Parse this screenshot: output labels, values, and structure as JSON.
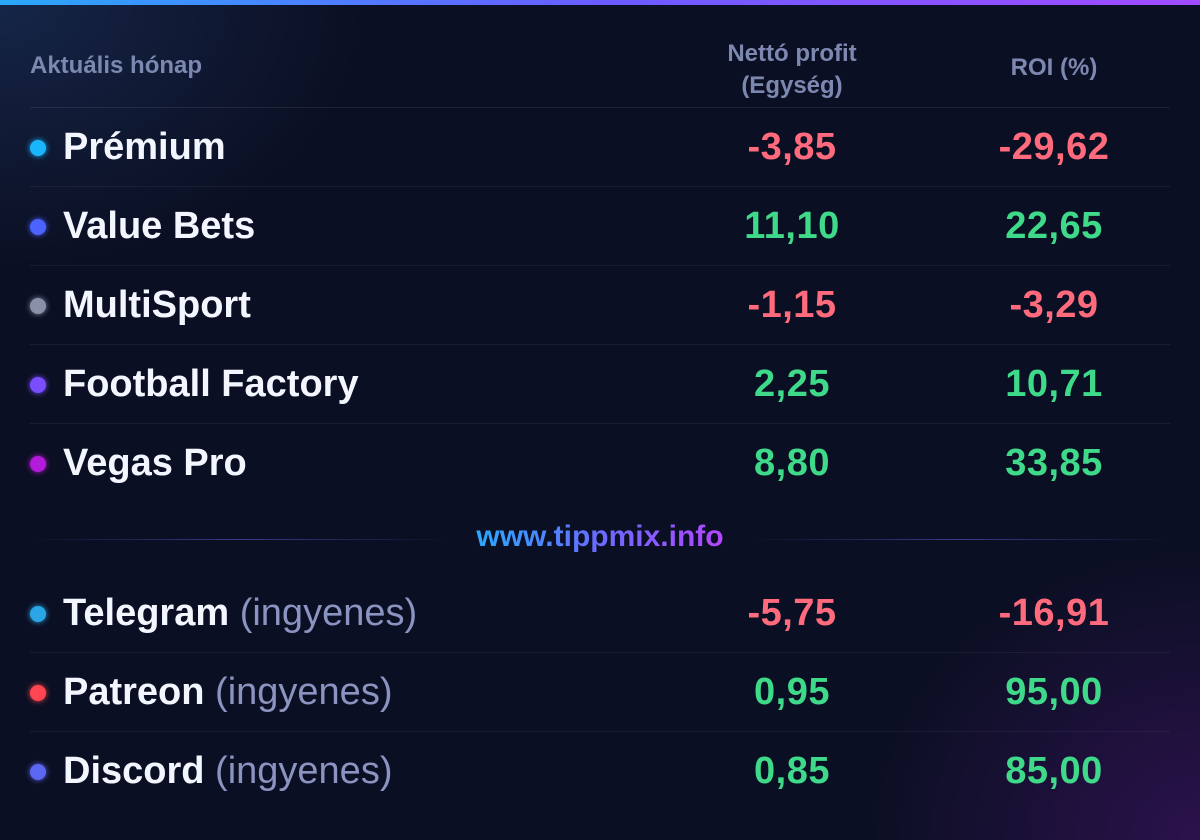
{
  "header": {
    "period_label": "Aktuális hónap",
    "col_profit_line1": "Nettó profit",
    "col_profit_line2": "(Egység)",
    "col_roi": "ROI (%)"
  },
  "paid_rows": [
    {
      "name": "Prémium",
      "sub": "",
      "profit": "-3,85",
      "roi": "-29,62",
      "dot_color": "#19b6ff",
      "profit_sign": "neg",
      "roi_sign": "neg"
    },
    {
      "name": "Value Bets",
      "sub": "",
      "profit": "11,10",
      "roi": "22,65",
      "dot_color": "#4d63ff",
      "profit_sign": "pos",
      "roi_sign": "pos"
    },
    {
      "name": "MultiSport",
      "sub": "",
      "profit": "-1,15",
      "roi": "-3,29",
      "dot_color": "#8a90a8",
      "profit_sign": "neg",
      "roi_sign": "neg"
    },
    {
      "name": "Football Factory",
      "sub": "",
      "profit": "2,25",
      "roi": "10,71",
      "dot_color": "#7a4dff",
      "profit_sign": "pos",
      "roi_sign": "pos"
    },
    {
      "name": "Vegas Pro",
      "sub": "",
      "profit": "8,80",
      "roi": "33,85",
      "dot_color": "#b21bd9",
      "profit_sign": "pos",
      "roi_sign": "pos"
    }
  ],
  "brand": "www.tippmix.info",
  "free_rows": [
    {
      "name": "Telegram",
      "sub": "(ingyenes)",
      "profit": "-5,75",
      "roi": "-16,91",
      "dot_color": "#2aa6e6",
      "profit_sign": "neg",
      "roi_sign": "neg"
    },
    {
      "name": "Patreon",
      "sub": "(ingyenes)",
      "profit": "0,95",
      "roi": "95,00",
      "dot_color": "#ff4652",
      "profit_sign": "pos",
      "roi_sign": "pos"
    },
    {
      "name": "Discord",
      "sub": "(ingyenes)",
      "profit": "0,85",
      "roi": "85,00",
      "dot_color": "#5c67f2",
      "profit_sign": "pos",
      "roi_sign": "pos"
    }
  ],
  "colors": {
    "negative": "#ff6b7d",
    "positive": "#3fd98a",
    "accent_start": "#2aa8ff",
    "accent_end": "#a24bff"
  }
}
